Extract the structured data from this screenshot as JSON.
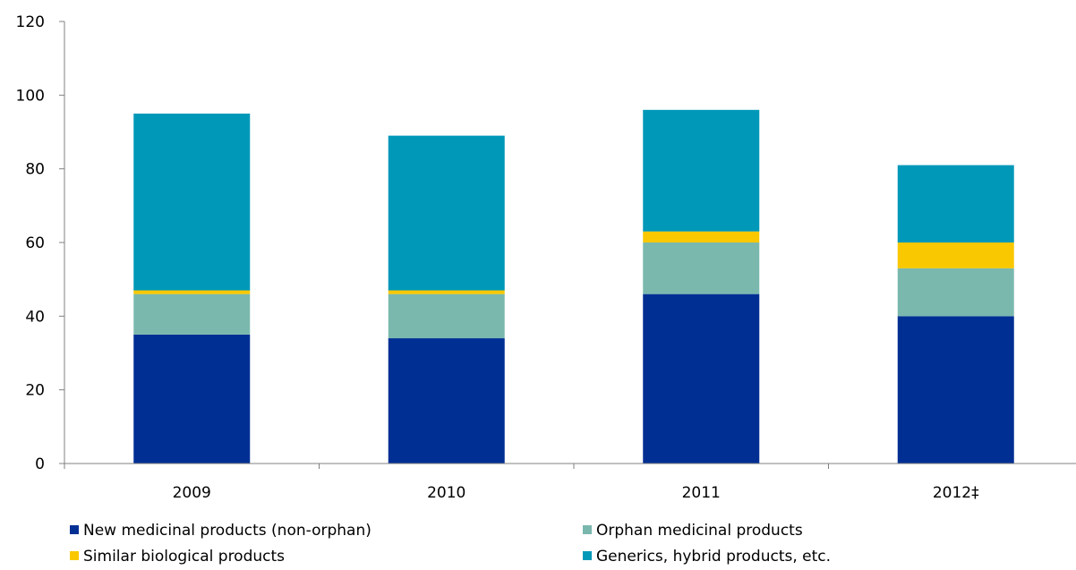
{
  "chart_data": {
    "type": "bar",
    "stacked": true,
    "categories": [
      "2009",
      "2010",
      "2011",
      "2012‡"
    ],
    "series": [
      {
        "name": "New medicinal products (non-orphan)",
        "color": "#002F94",
        "values": [
          35,
          34,
          46,
          40
        ]
      },
      {
        "name": "Orphan medicinal products",
        "color": "#7AB8AE",
        "values": [
          11,
          12,
          14,
          13
        ]
      },
      {
        "name": "Similar biological products",
        "color": "#F9C800",
        "values": [
          1,
          1,
          3,
          7
        ]
      },
      {
        "name": "Generics, hybrid products, etc.",
        "color": "#0098B8",
        "values": [
          48,
          42,
          33,
          21
        ]
      }
    ],
    "ylim": [
      0,
      120
    ],
    "yticks": [
      0,
      20,
      40,
      60,
      80,
      100,
      120
    ],
    "grid": false,
    "legend_position": "bottom"
  }
}
